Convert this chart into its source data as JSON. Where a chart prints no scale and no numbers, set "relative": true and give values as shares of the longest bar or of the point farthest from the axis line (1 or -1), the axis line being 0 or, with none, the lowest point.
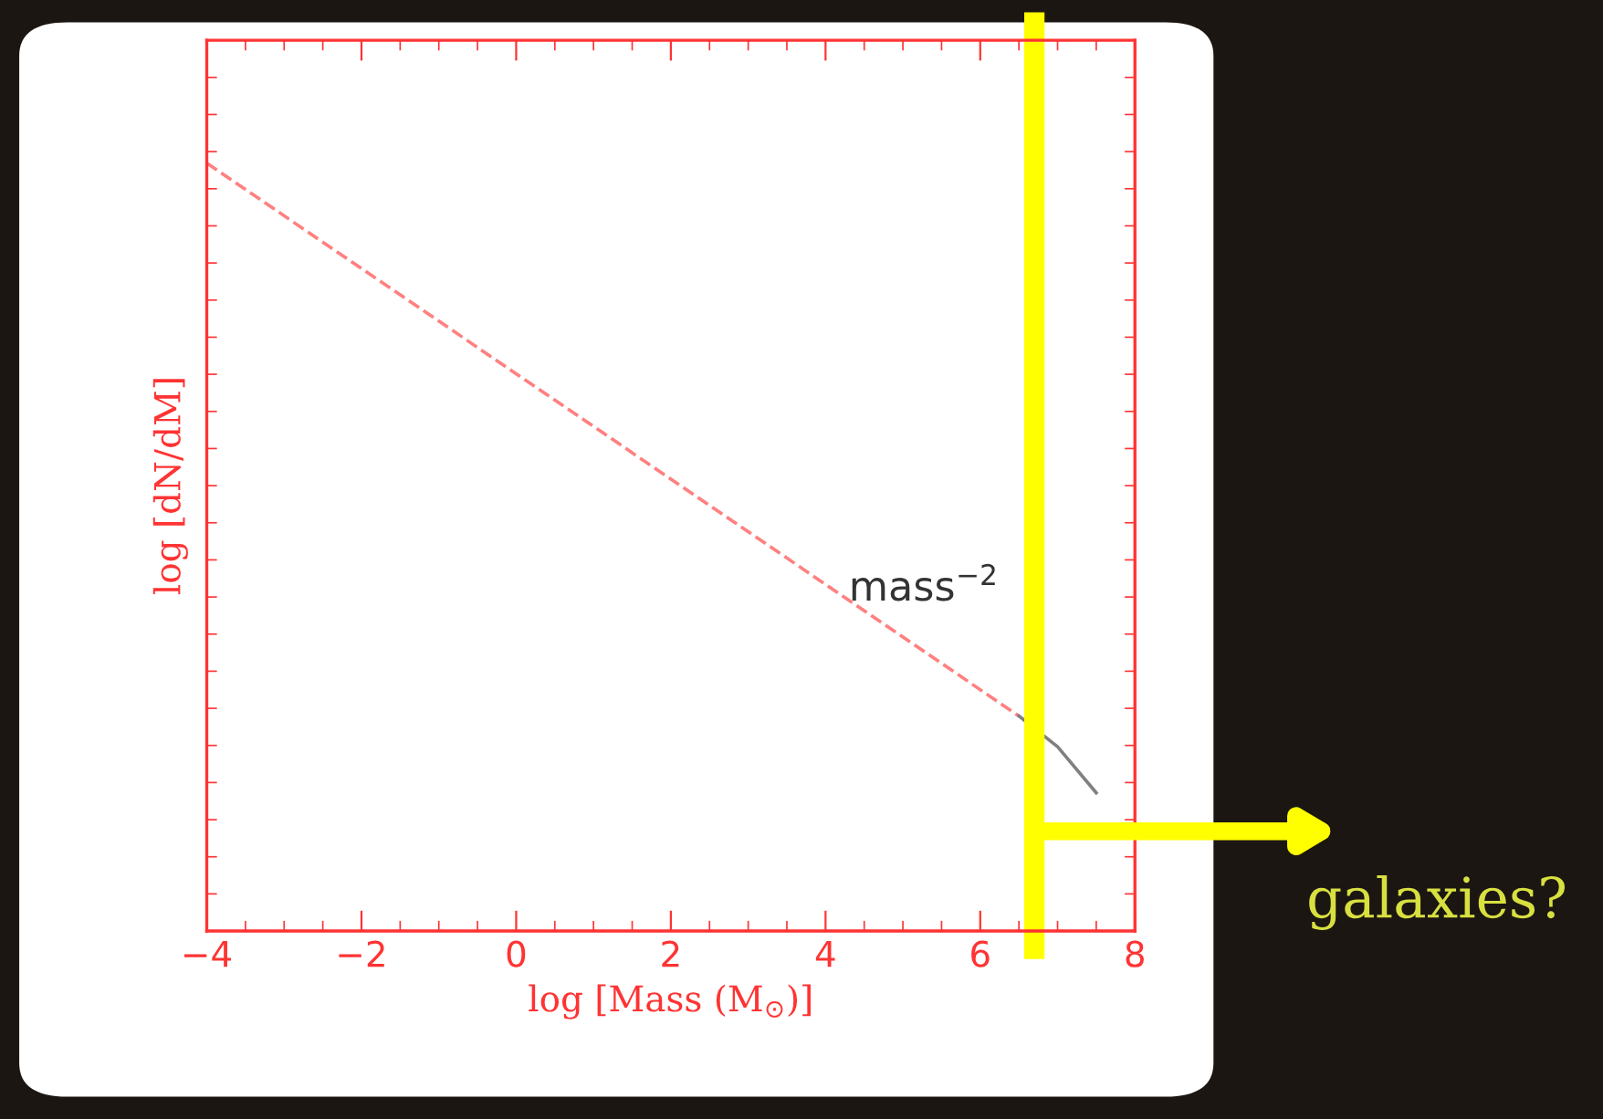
{
  "chart_data": {
    "type": "line",
    "xlabel": "log [Mass (M$_{⊙}$)]",
    "ylabel": "log [dN/dM]",
    "xlim": [
      -4,
      8
    ],
    "xticks": [
      {
        "value": -4,
        "label": "−4"
      },
      {
        "value": -2,
        "label": "−2"
      },
      0,
      2,
      4,
      6,
      8
    ],
    "relative": true,
    "grid": false,
    "legend": false,
    "marker": "none",
    "series": [
      {
        "color": "#ff8080",
        "line_style": "dashed",
        "x": [
          -4,
          6.5
        ],
        "values": [
          1,
          0.28
        ]
      },
      {
        "color": "#808080",
        "line_style": "solid",
        "x": [
          6.5,
          7.0,
          7.5
        ],
        "values": [
          0.28,
          0.24,
          0.18
        ]
      }
    ],
    "ref_lines": [
      {
        "axis": "x",
        "value": 6.7,
        "color": "#ffff00",
        "line_style": "solid"
      }
    ],
    "annotations": [
      {
        "text": "mass$^{−2}$",
        "x": 4.3,
        "y": 0.43
      },
      "galaxies?"
    ]
  }
}
